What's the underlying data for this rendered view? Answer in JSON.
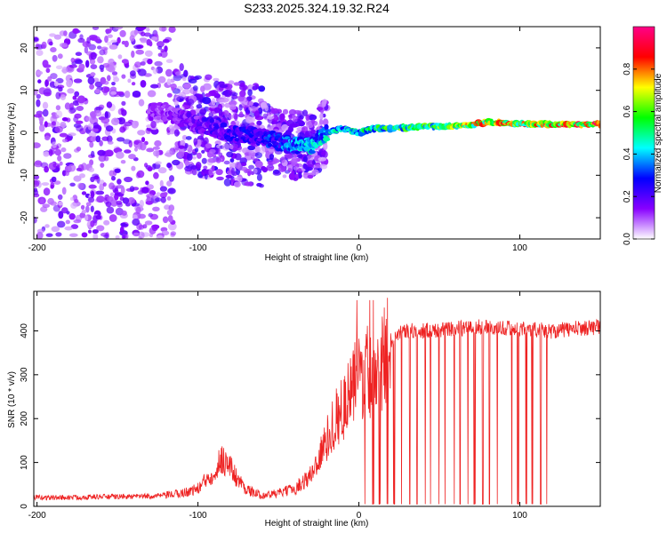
{
  "title": "S233.2025.324.19.32.R24",
  "chart_data": [
    {
      "type": "heatmap",
      "title": "S233.2025.324.19.32.R24",
      "xlabel": "Height of straight line (km)",
      "ylabel": "Frequency (Hz)",
      "xlim": [
        -202,
        150
      ],
      "ylim": [
        -25,
        25
      ],
      "xticks": [
        -200,
        -100,
        0,
        100
      ],
      "xtick_labels": [
        "-200",
        "-100",
        "0",
        "100"
      ],
      "yticks": [
        -20,
        -10,
        0,
        10,
        20
      ],
      "ytick_labels": [
        "-20",
        "-10",
        "0",
        "10",
        "20"
      ],
      "colorbar": {
        "label": "Normalized spectral amplitude",
        "range": [
          0,
          1
        ],
        "ticks": [
          0.0,
          0.2,
          0.4,
          0.6,
          0.8
        ],
        "tick_labels": [
          "0.0",
          "0.2",
          "0.4",
          "0.6",
          "0.8"
        ],
        "colormap": [
          "#ffffff",
          "#8800ff",
          "#0000ff",
          "#00ffff",
          "#00ff00",
          "#ffff00",
          "#ff0000",
          "#ff0088"
        ]
      },
      "ridge": {
        "description_points_x_km": [
          -120,
          -100,
          -80,
          -60,
          -40,
          -30,
          -20,
          -10,
          0,
          10,
          20,
          40,
          60,
          80,
          100,
          120,
          150
        ],
        "frequency_hz": [
          5,
          2,
          0,
          -1,
          -3,
          -3,
          0,
          1,
          0,
          1,
          1,
          1.5,
          1.5,
          2.5,
          2,
          2,
          2
        ],
        "amplitude": [
          0.15,
          0.2,
          0.25,
          0.3,
          0.4,
          0.45,
          0.45,
          0.5,
          0.5,
          0.55,
          0.6,
          0.6,
          0.7,
          0.85,
          0.8,
          0.9,
          0.9
        ]
      }
    },
    {
      "type": "line",
      "xlabel": "Height of straight line (km)",
      "ylabel": "SNR (10 * v/v)",
      "xlim": [
        -202,
        150
      ],
      "ylim": [
        0,
        490
      ],
      "xticks": [
        -200,
        -100,
        0,
        100
      ],
      "xtick_labels": [
        "-200",
        "-100",
        "0",
        "100"
      ],
      "yticks": [
        0,
        100,
        200,
        300,
        400
      ],
      "ytick_labels": [
        "0",
        "100",
        "200",
        "300",
        "400"
      ],
      "series": [
        {
          "name": "SNR",
          "color": "#ee2222",
          "x": [
            -202,
            -180,
            -160,
            -140,
            -120,
            -110,
            -100,
            -90,
            -85,
            -80,
            -75,
            -70,
            -65,
            -60,
            -50,
            -40,
            -30,
            -25,
            -20,
            -15,
            -10,
            -5,
            0,
            5,
            10,
            15,
            20,
            25,
            30,
            40,
            60,
            80,
            100,
            120,
            150
          ],
          "y": [
            20,
            20,
            22,
            22,
            25,
            30,
            40,
            80,
            110,
            90,
            60,
            40,
            30,
            25,
            30,
            40,
            70,
            110,
            150,
            200,
            220,
            260,
            300,
            310,
            300,
            330,
            380,
            400,
            400,
            400,
            405,
            410,
            405,
            400,
            410
          ],
          "dropouts_x": [
            0,
            4,
            9,
            13,
            18,
            22,
            27,
            32,
            36,
            41,
            45,
            50,
            54,
            59,
            63,
            68,
            72,
            77,
            81,
            86,
            90,
            95,
            99,
            104,
            108,
            113,
            117
          ]
        }
      ]
    }
  ]
}
